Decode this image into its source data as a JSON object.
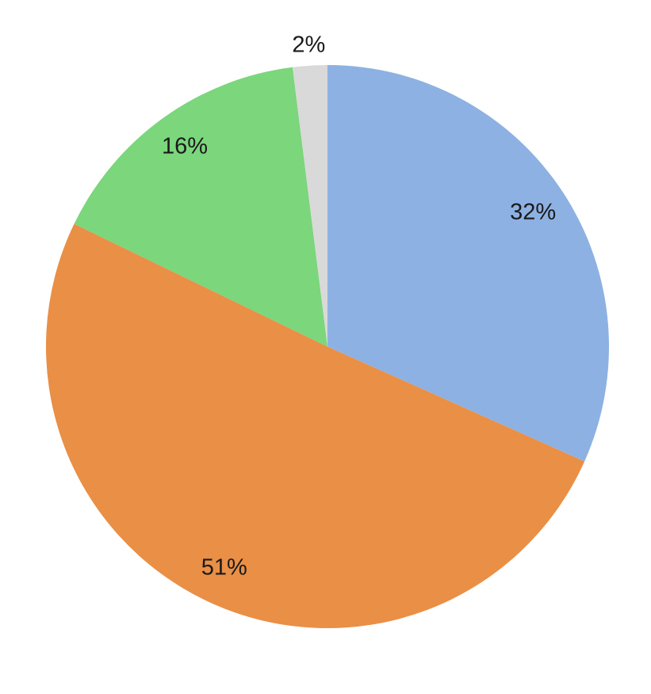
{
  "chart_data": {
    "type": "pie",
    "values": [
      32,
      51,
      16,
      2
    ],
    "value_labels": [
      "32%",
      "51%",
      "16%",
      "2%"
    ],
    "colors": [
      "#8db1e2",
      "#e98f46",
      "#7bd67c",
      "#d9d9d9"
    ]
  }
}
